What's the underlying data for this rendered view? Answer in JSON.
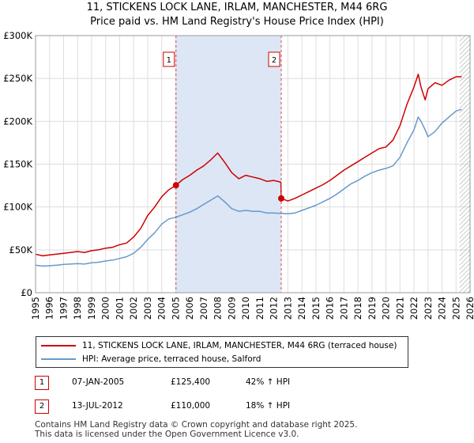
{
  "title_line1": "11, STICKENS LOCK LANE, IRLAM, MANCHESTER, M44 6RG",
  "title_line2": "Price paid vs. HM Land Registry's House Price Index (HPI)",
  "colors": {
    "property": "#cc0000",
    "hpi": "#6699cc",
    "shade": "#dde6f5",
    "grid": "#dddddd",
    "vline": "#dd4444"
  },
  "chart_data": {
    "type": "line",
    "xlim": [
      1995,
      2026
    ],
    "ylim": [
      0,
      300000
    ],
    "y_ticks": [
      {
        "value": 0,
        "label": "£0"
      },
      {
        "value": 50000,
        "label": "£50K"
      },
      {
        "value": 100000,
        "label": "£100K"
      },
      {
        "value": 150000,
        "label": "£150K"
      },
      {
        "value": 200000,
        "label": "£200K"
      },
      {
        "value": 250000,
        "label": "£250K"
      },
      {
        "value": 300000,
        "label": "£300K"
      }
    ],
    "x_ticks": [
      "1995",
      "1996",
      "1997",
      "1998",
      "1999",
      "2000",
      "2001",
      "2002",
      "2003",
      "2004",
      "2005",
      "2006",
      "2007",
      "2008",
      "2009",
      "2010",
      "2011",
      "2012",
      "2013",
      "2014",
      "2015",
      "2016",
      "2017",
      "2018",
      "2019",
      "2020",
      "2021",
      "2022",
      "2023",
      "2024",
      "2025",
      "2026"
    ],
    "shaded_range": [
      2005.02,
      2012.53
    ],
    "hatched_from": 2025.25,
    "markers": [
      {
        "label": "1",
        "x": 2005.02
      },
      {
        "label": "2",
        "x": 2012.53
      }
    ],
    "series": [
      {
        "name": "11, STICKENS LOCK LANE, IRLAM, MANCHESTER, M44 6RG (terraced house)",
        "color": "#cc0000",
        "x": [
          1995,
          1995.5,
          1996,
          1996.5,
          1997,
          1997.5,
          1998,
          1998.5,
          1999,
          1999.5,
          2000,
          2000.5,
          2001,
          2001.5,
          2002,
          2002.5,
          2003,
          2003.5,
          2004,
          2004.5,
          2005.02,
          2005.5,
          2006,
          2006.5,
          2007,
          2007.5,
          2008,
          2008.5,
          2009,
          2009.5,
          2010,
          2010.5,
          2011,
          2011.5,
          2012,
          2012.5,
          2012.53,
          2013,
          2013.5,
          2014,
          2014.5,
          2015,
          2015.5,
          2016,
          2016.5,
          2017,
          2017.5,
          2018,
          2018.5,
          2019,
          2019.5,
          2020,
          2020.5,
          2021,
          2021.5,
          2022,
          2022.3,
          2022.5,
          2022.8,
          2023,
          2023.5,
          2024,
          2024.5,
          2025,
          2025.4
        ],
        "y": [
          45000,
          43000,
          44000,
          45000,
          46000,
          47000,
          48000,
          47000,
          49000,
          50000,
          52000,
          53000,
          56000,
          58000,
          65000,
          75000,
          90000,
          100000,
          112000,
          120000,
          125400,
          132000,
          137000,
          143000,
          148000,
          155000,
          163000,
          152000,
          140000,
          133000,
          137000,
          135000,
          133000,
          130000,
          131000,
          129000,
          110000,
          107000,
          110000,
          114000,
          118000,
          122000,
          126000,
          131000,
          137000,
          143000,
          148000,
          153000,
          158000,
          163000,
          168000,
          170000,
          178000,
          195000,
          220000,
          240000,
          255000,
          240000,
          225000,
          238000,
          245000,
          242000,
          248000,
          252000,
          252000
        ]
      },
      {
        "name": "HPI: Average price, terraced house, Salford",
        "color": "#6699cc",
        "x": [
          1995,
          1995.5,
          1996,
          1996.5,
          1997,
          1997.5,
          1998,
          1998.5,
          1999,
          1999.5,
          2000,
          2000.5,
          2001,
          2001.5,
          2002,
          2002.5,
          2003,
          2003.5,
          2004,
          2004.5,
          2005,
          2005.5,
          2006,
          2006.5,
          2007,
          2007.5,
          2008,
          2008.5,
          2009,
          2009.5,
          2010,
          2010.5,
          2011,
          2011.5,
          2012,
          2012.5,
          2013,
          2013.5,
          2014,
          2014.5,
          2015,
          2015.5,
          2016,
          2016.5,
          2017,
          2017.5,
          2018,
          2018.5,
          2019,
          2019.5,
          2020,
          2020.5,
          2021,
          2021.5,
          2022,
          2022.3,
          2022.5,
          2022.8,
          2023,
          2023.5,
          2024,
          2024.5,
          2025,
          2025.4
        ],
        "y": [
          32000,
          31000,
          31500,
          32000,
          33000,
          33500,
          34000,
          33500,
          35000,
          35500,
          37000,
          38000,
          40000,
          42000,
          46000,
          53000,
          62000,
          70000,
          80000,
          86000,
          88000,
          91000,
          94000,
          98000,
          103000,
          108000,
          113000,
          106000,
          98000,
          95000,
          96000,
          95000,
          95000,
          93000,
          93000,
          92500,
          92000,
          93000,
          96000,
          99000,
          102000,
          106000,
          110000,
          115000,
          121000,
          127000,
          131000,
          136000,
          140000,
          143000,
          145000,
          148000,
          158000,
          175000,
          190000,
          205000,
          200000,
          190000,
          182000,
          188000,
          198000,
          205000,
          212000,
          214000
        ]
      }
    ]
  },
  "legend": {
    "property_label": "11, STICKENS LOCK LANE, IRLAM, MANCHESTER, M44 6RG (terraced house)",
    "hpi_label": "HPI: Average price, terraced house, Salford"
  },
  "sales": [
    {
      "num": "1",
      "date": "07-JAN-2005",
      "price": "£125,400",
      "hpi": "42% ↑ HPI"
    },
    {
      "num": "2",
      "date": "13-JUL-2012",
      "price": "£110,000",
      "hpi": "18% ↑ HPI"
    }
  ],
  "footer_line1": "Contains HM Land Registry data © Crown copyright and database right 2025.",
  "footer_line2": "This data is licensed under the Open Government Licence v3.0."
}
